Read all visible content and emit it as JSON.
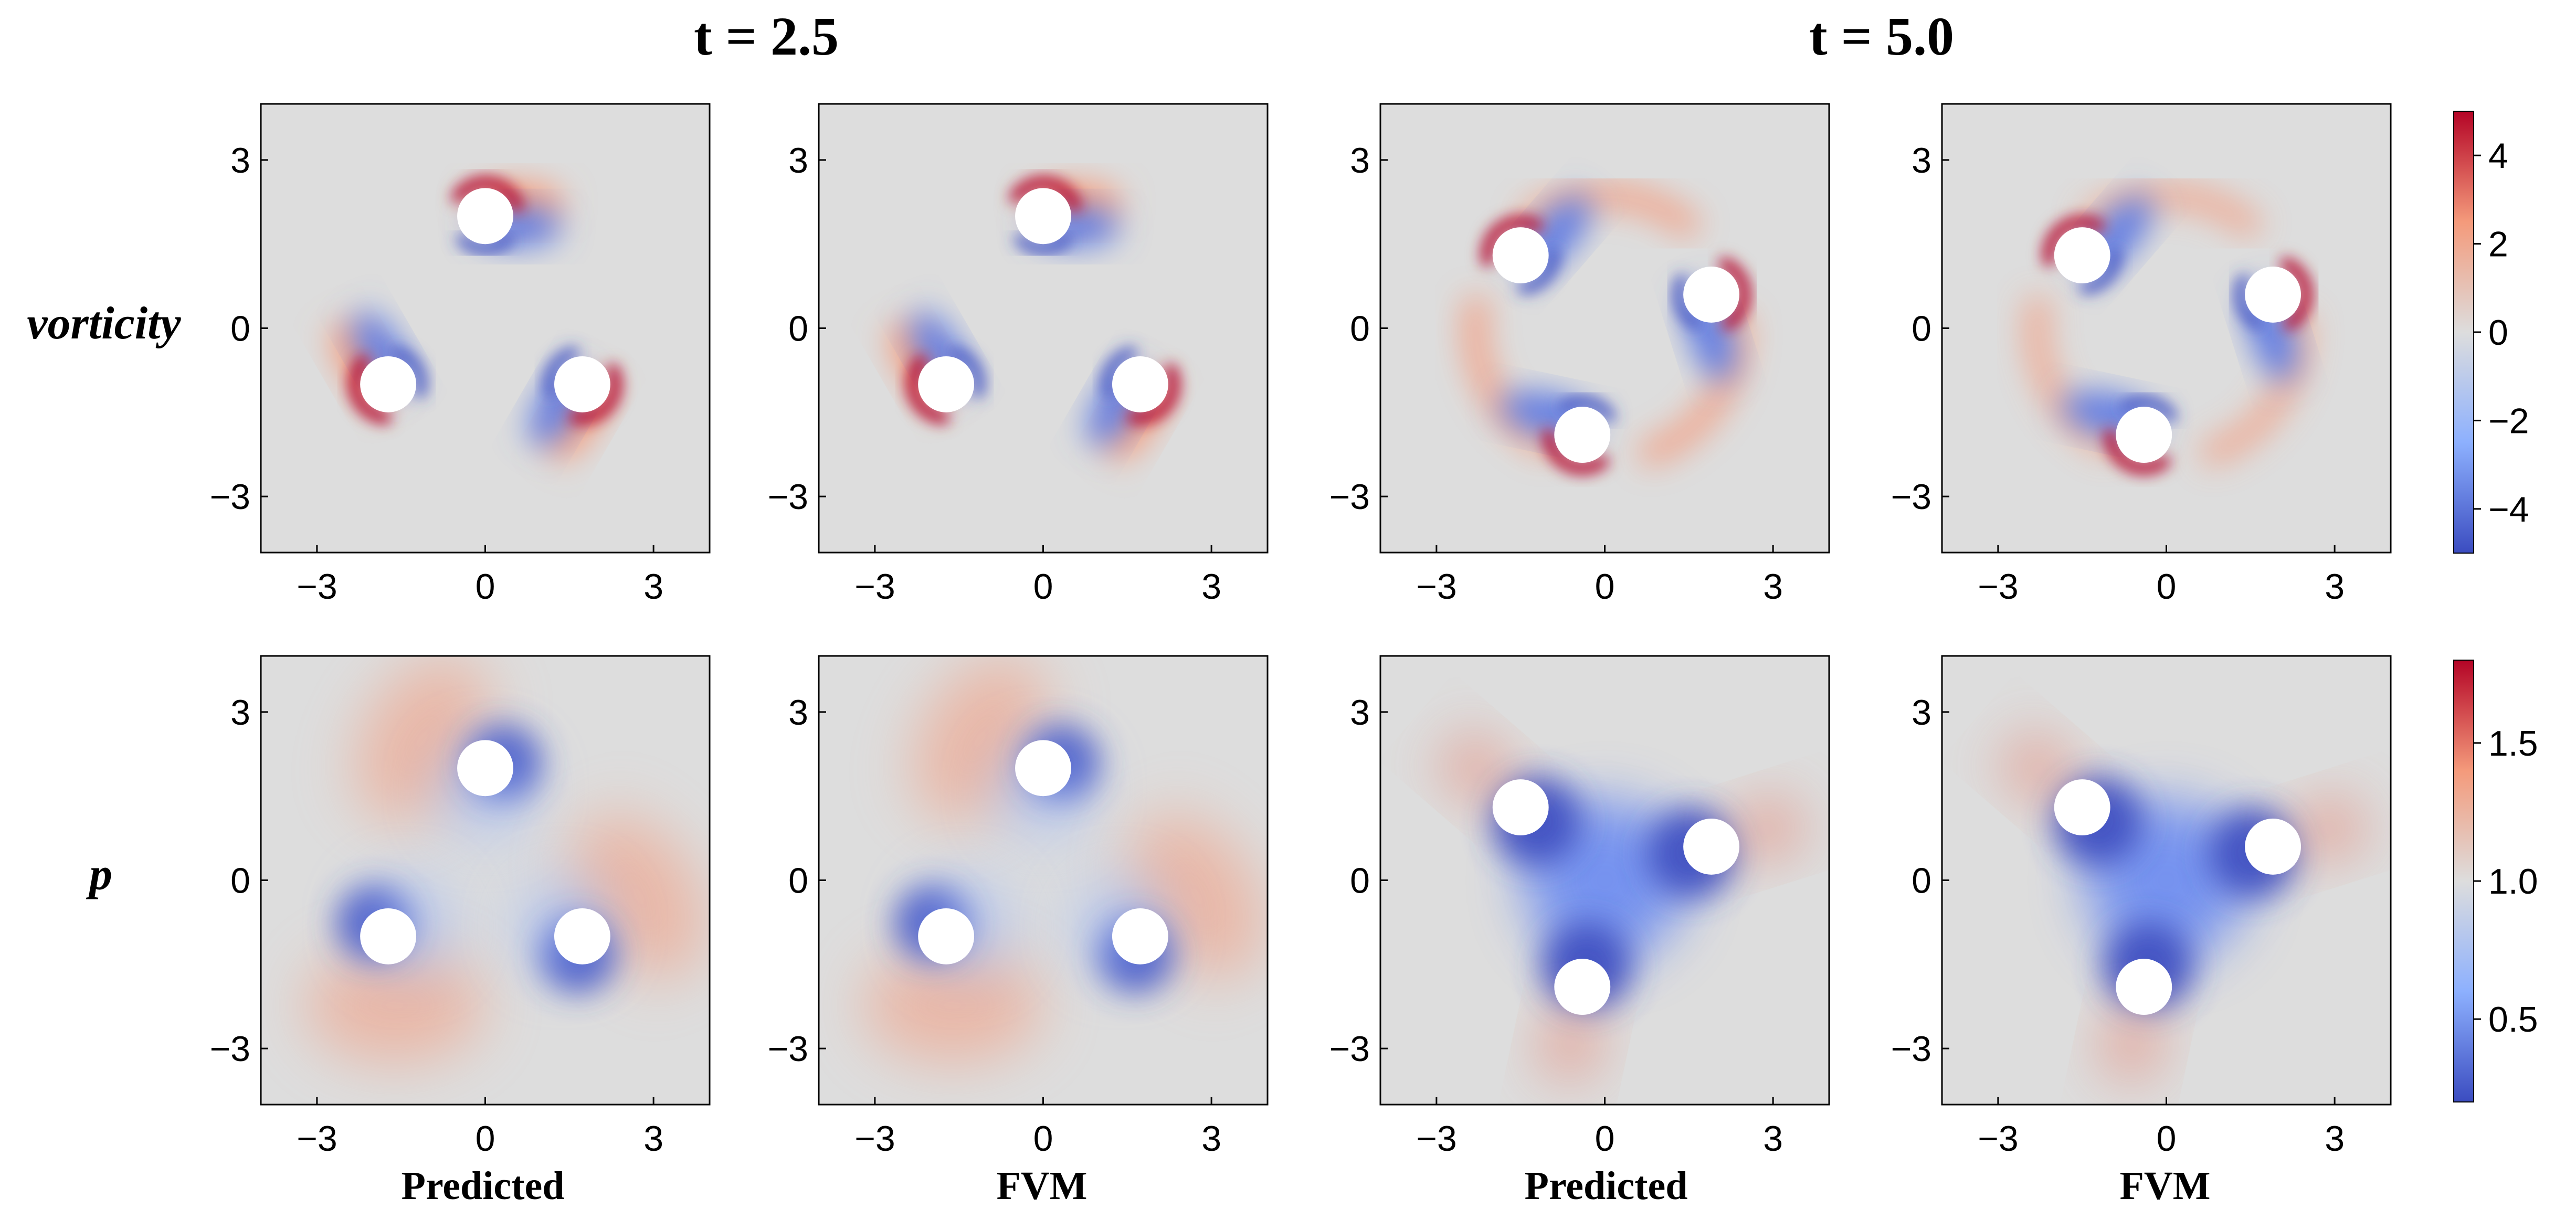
{
  "chart_data": {
    "type": "heatmap",
    "column_group_titles": [
      "t = 2.5",
      "t = 5.0"
    ],
    "row_labels": [
      "vorticity",
      "p"
    ],
    "column_labels": [
      "Predicted",
      "FVM",
      "Predicted",
      "FVM"
    ],
    "xlim": [
      -4,
      4
    ],
    "ylim": [
      -4,
      4
    ],
    "x_ticks": [
      -3,
      0,
      3
    ],
    "y_ticks": [
      -3,
      0,
      3
    ],
    "x_tick_labels": [
      "−3",
      "0",
      "3"
    ],
    "y_tick_labels": [
      "3",
      "0",
      "−3"
    ],
    "cylinder_radius": 0.5,
    "cylinders": {
      "t = 2.5": [
        [
          0,
          2
        ],
        [
          -1.73,
          -1
        ],
        [
          1.73,
          -1
        ]
      ],
      "t = 5.0": [
        [
          -1.5,
          1.3
        ],
        [
          1.9,
          0.6
        ],
        [
          -0.4,
          -1.9
        ]
      ]
    },
    "colorbars": [
      {
        "field": "vorticity",
        "range": [
          -5,
          5
        ],
        "ticks": [
          4,
          2,
          0,
          -2,
          -4
        ],
        "tick_labels": [
          "4",
          "2",
          "0",
          "−2",
          "−4"
        ],
        "colormap": "coolwarm",
        "colors": [
          "#3b4cc0",
          "#8db0fe",
          "#dddddd",
          "#f49a7b",
          "#b40426"
        ]
      },
      {
        "field": "p",
        "range": [
          0.2,
          1.8
        ],
        "ticks": [
          1.5,
          1.0,
          0.5
        ],
        "tick_labels": [
          "1.5",
          "1.0",
          "0.5"
        ],
        "colormap": "coolwarm",
        "colors": [
          "#3b4cc0",
          "#8db0fe",
          "#dddddd",
          "#f49a7b",
          "#b40426"
        ]
      }
    ],
    "background_color": "#dddddd",
    "cylinder_color": "#ffffff"
  }
}
